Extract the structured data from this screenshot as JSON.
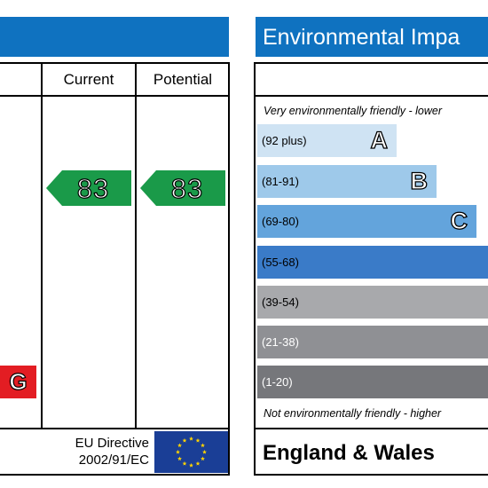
{
  "left_panel": {
    "columns": [
      "Current",
      "Potential"
    ],
    "current_score": "83",
    "potential_score": "83",
    "arrow_color": "#1a9a49",
    "visible_band_letter": "G",
    "visible_band_color": "#e31d23",
    "footer_line1": "EU Directive",
    "footer_line2": "2002/91/EC",
    "flag_icon": "eu-flag-icon"
  },
  "right_panel": {
    "title": "Environmental Impa",
    "top_note": "Very environmentally friendly - lower",
    "bottom_note": "Not environmentally friendly - higher",
    "footer": "England & Wales"
  },
  "chart_data": {
    "type": "bar",
    "title": "Environmental Impa",
    "bands": [
      {
        "range": "(92 plus)",
        "letter": "A",
        "color": "#cfe3f3",
        "text_color": "#000000"
      },
      {
        "range": "(81-91)",
        "letter": "B",
        "color": "#9ec9ea",
        "text_color": "#000000"
      },
      {
        "range": "(69-80)",
        "letter": "C",
        "color": "#63a4dc",
        "text_color": "#000000"
      },
      {
        "range": "(55-68)",
        "letter": "",
        "color": "#3a7bc8",
        "text_color": "#000000"
      },
      {
        "range": "(39-54)",
        "letter": "",
        "color": "#a8a9ac",
        "text_color": "#000000"
      },
      {
        "range": "(21-38)",
        "letter": "",
        "color": "#8f9094",
        "text_color": "#ffffff"
      },
      {
        "range": "(1-20)",
        "letter": "",
        "color": "#76777b",
        "text_color": "#ffffff"
      }
    ],
    "current": 83,
    "potential": 83
  }
}
